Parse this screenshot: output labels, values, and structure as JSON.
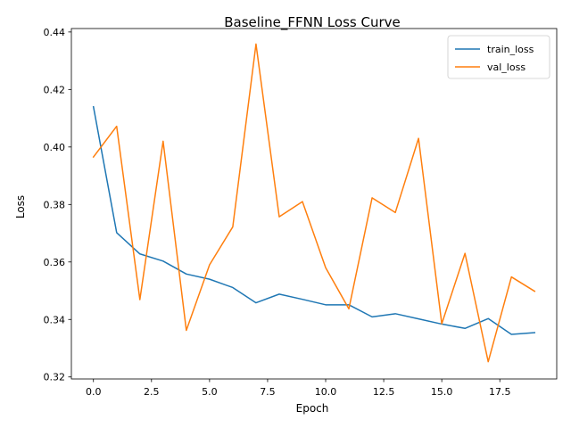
{
  "chart_data": {
    "type": "line",
    "title": "Baseline_FFNN Loss Curve",
    "xlabel": "Epoch",
    "ylabel": "Loss",
    "x": [
      0,
      1,
      2,
      3,
      4,
      5,
      6,
      7,
      8,
      9,
      10,
      11,
      12,
      13,
      14,
      15,
      16,
      17,
      18,
      19
    ],
    "xlim": [
      -0.95,
      19.95
    ],
    "ylim": [
      0.3193,
      0.4412
    ],
    "xticks": [
      0.0,
      2.5,
      5.0,
      7.5,
      10.0,
      12.5,
      15.0,
      17.5
    ],
    "xtick_labels": [
      "0.0",
      "2.5",
      "5.0",
      "7.5",
      "10.0",
      "12.5",
      "15.0",
      "17.5"
    ],
    "yticks": [
      0.32,
      0.34,
      0.36,
      0.38,
      0.4,
      0.42,
      0.44
    ],
    "ytick_labels": [
      "0.32",
      "0.34",
      "0.36",
      "0.38",
      "0.40",
      "0.42",
      "0.44"
    ],
    "grid": false,
    "legend_position": "top-right",
    "series": [
      {
        "name": "train_loss",
        "color": "#1f77b4",
        "values": [
          0.414,
          0.3702,
          0.3628,
          0.3603,
          0.3558,
          0.354,
          0.3511,
          0.3458,
          0.3488,
          0.347,
          0.3451,
          0.3451,
          0.3409,
          0.342,
          0.3402,
          0.3384,
          0.3369,
          0.3403,
          0.3348,
          0.3354
        ]
      },
      {
        "name": "val_loss",
        "color": "#ff7f0e",
        "values": [
          0.3965,
          0.4072,
          0.3469,
          0.402,
          0.3362,
          0.359,
          0.3722,
          0.4358,
          0.3757,
          0.381,
          0.358,
          0.3437,
          0.3823,
          0.3772,
          0.403,
          0.3385,
          0.363,
          0.3253,
          0.3548,
          0.3498
        ]
      }
    ]
  }
}
